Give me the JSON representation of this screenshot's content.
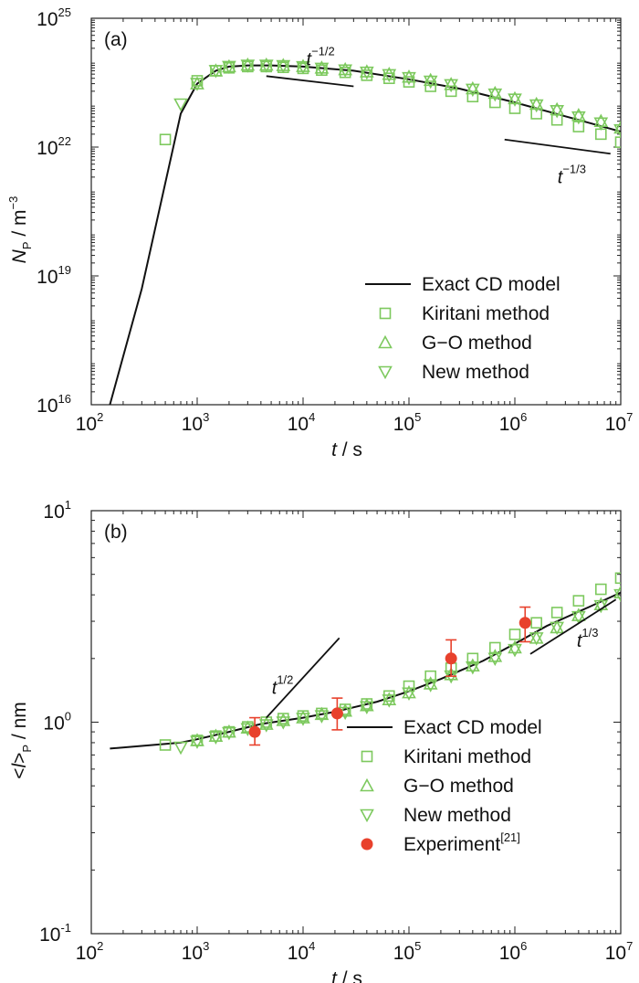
{
  "chart_data": [
    {
      "type": "line",
      "panel_label": "(a)",
      "xlabel": {
        "var": "t",
        "unit": " / s"
      },
      "ylabel": {
        "var": "N",
        "sub": "P",
        "unit": " / m",
        "unit_sup": "−3"
      },
      "x_scale": "log",
      "y_scale": "log",
      "xlim": [
        100,
        10000000
      ],
      "ylim": [
        1e+16,
        1e+25
      ],
      "x_ticks": [
        {
          "value": 100,
          "base": "10",
          "exp": "2"
        },
        {
          "value": 1000,
          "base": "10",
          "exp": "3"
        },
        {
          "value": 10000,
          "base": "10",
          "exp": "4"
        },
        {
          "value": 100000,
          "base": "10",
          "exp": "5"
        },
        {
          "value": 1000000,
          "base": "10",
          "exp": "6"
        },
        {
          "value": 10000000,
          "base": "10",
          "exp": "7"
        }
      ],
      "y_ticks": [
        {
          "value": 1e+16,
          "base": "10",
          "exp": "16"
        },
        {
          "value": 1e+19,
          "base": "10",
          "exp": "19"
        },
        {
          "value": 1e+22,
          "base": "10",
          "exp": "22"
        },
        {
          "value": 1e+25,
          "base": "10",
          "exp": "25"
        }
      ],
      "legend": {
        "position": "lower-right",
        "entries": [
          {
            "label": "Exact CD model",
            "symbol": "line"
          },
          {
            "label": "Kiritani method",
            "symbol": "square"
          },
          {
            "label": "G−O method",
            "symbol": "triangle-up"
          },
          {
            "label": "New method",
            "symbol": "triangle-down"
          }
        ]
      },
      "slope_annotations": [
        {
          "base": "t",
          "exp": "−1/2",
          "x": [
            4500,
            30000
          ],
          "y": [
            4.5e+23,
            2.6e+23
          ]
        },
        {
          "base": "t",
          "exp": "−1/3",
          "x": [
            800000,
            8000000
          ],
          "y": [
            1.5e+22,
            7e+21
          ]
        }
      ],
      "series": [
        {
          "name": "Exact CD model",
          "marker": "line",
          "x": [
            150,
            300,
            700,
            1000,
            1500,
            2000,
            3000,
            5000,
            10000,
            30000,
            100000,
            300000,
            1000000,
            3000000,
            10000000
          ],
          "y": [
            1e+16,
            5e+18,
            6e+22,
            3e+23,
            6e+23,
            7.5e+23,
            8e+23,
            8e+23,
            7.5e+23,
            6e+23,
            3.8e+23,
            2.3e+23,
            1.1e+23,
            5.2e+22,
            2.3e+22
          ]
        },
        {
          "name": "Kiritani method",
          "marker": "square",
          "x": [
            500,
            1000,
            1500,
            2000,
            3000,
            4500,
            6500,
            10000,
            15000,
            25000,
            40000,
            65000,
            100000,
            160000,
            250000,
            400000,
            650000,
            1000000,
            1600000,
            2500000,
            4000000,
            6500000,
            10000000
          ],
          "y": [
            1.5e+22,
            3.5e+23,
            6e+23,
            7e+23,
            7.5e+23,
            7.5e+23,
            7.2e+23,
            6.8e+23,
            6.2e+23,
            5.5e+23,
            4.7e+23,
            4e+23,
            3.3e+23,
            2.6e+23,
            2e+23,
            1.5e+23,
            1.1e+23,
            8e+22,
            6e+22,
            4.3e+22,
            3e+22,
            2e+22,
            1.3e+22
          ]
        },
        {
          "name": "G−O method",
          "marker": "triangle-up",
          "x": [
            1000,
            1500,
            2000,
            3000,
            4500,
            6500,
            10000,
            15000,
            25000,
            40000,
            65000,
            100000,
            160000,
            250000,
            400000,
            650000,
            1000000,
            1600000,
            2500000,
            4000000,
            6500000,
            10000000
          ],
          "y": [
            3e+23,
            6e+23,
            7.5e+23,
            8.2e+23,
            8.2e+23,
            8e+23,
            7.6e+23,
            7e+23,
            6.4e+23,
            5.7e+23,
            5e+23,
            4.3e+23,
            3.6e+23,
            2.9e+23,
            2.3e+23,
            1.8e+23,
            1.35e+23,
            1e+23,
            7.5e+22,
            5.5e+22,
            4e+22,
            2.8e+22
          ]
        },
        {
          "name": "New method",
          "marker": "triangle-down",
          "x": [
            700,
            1000,
            1500,
            2000,
            3000,
            4500,
            6500,
            10000,
            15000,
            25000,
            40000,
            65000,
            100000,
            160000,
            250000,
            400000,
            650000,
            1000000,
            1600000,
            2500000,
            4000000,
            6500000,
            10000000
          ],
          "y": [
            1e+23,
            3e+23,
            6e+23,
            7.5e+23,
            8e+23,
            8e+23,
            7.8e+23,
            7.4e+23,
            6.8e+23,
            6.2e+23,
            5.5e+23,
            4.8e+23,
            4.1e+23,
            3.4e+23,
            2.8e+23,
            2.2e+23,
            1.7e+23,
            1.3e+23,
            9.5e+22,
            7e+22,
            5e+22,
            3.6e+22,
            2.5e+22
          ]
        }
      ]
    },
    {
      "type": "line",
      "panel_label": "(b)",
      "xlabel": {
        "var": "t",
        "unit": " / s"
      },
      "ylabel": {
        "pre": "<",
        "var": "l",
        "post": ">",
        "sub": "P",
        "unit": " / nm"
      },
      "x_scale": "log",
      "y_scale": "log",
      "xlim": [
        100,
        10000000
      ],
      "ylim": [
        0.1,
        10
      ],
      "x_ticks": [
        {
          "value": 100,
          "base": "10",
          "exp": "2"
        },
        {
          "value": 1000,
          "base": "10",
          "exp": "3"
        },
        {
          "value": 10000,
          "base": "10",
          "exp": "4"
        },
        {
          "value": 100000,
          "base": "10",
          "exp": "5"
        },
        {
          "value": 1000000,
          "base": "10",
          "exp": "6"
        },
        {
          "value": 10000000,
          "base": "10",
          "exp": "7"
        }
      ],
      "y_ticks": [
        {
          "value": 0.1,
          "base": "10",
          "exp": "-1"
        },
        {
          "value": 1,
          "base": "10",
          "exp": "0"
        },
        {
          "value": 10,
          "base": "10",
          "exp": "1"
        }
      ],
      "legend": {
        "position": "lower-right",
        "entries": [
          {
            "label": "Exact CD model",
            "symbol": "line"
          },
          {
            "label": "Kiritani method",
            "symbol": "square"
          },
          {
            "label": "G−O method",
            "symbol": "triangle-up"
          },
          {
            "label": "New method",
            "symbol": "triangle-down"
          },
          {
            "label": "Experiment",
            "sup": "[21]",
            "symbol": "filled-circle"
          }
        ]
      },
      "slope_annotations": [
        {
          "base": "t",
          "exp": "1/2",
          "x": [
            4500,
            22000
          ],
          "y": [
            1.05,
            2.5
          ]
        },
        {
          "base": "t",
          "exp": "1/3",
          "x": [
            1400000,
            9000000
          ],
          "y": [
            2.1,
            3.8
          ]
        }
      ],
      "series": [
        {
          "name": "Exact CD model",
          "marker": "line",
          "x": [
            150,
            700,
            1000,
            2000,
            4000,
            10000,
            20000,
            50000,
            100000,
            200000,
            500000,
            1000000,
            2000000,
            5000000,
            10000000
          ],
          "y": [
            0.75,
            0.8,
            0.83,
            0.9,
            0.98,
            1.05,
            1.12,
            1.25,
            1.4,
            1.6,
            1.95,
            2.35,
            2.85,
            3.5,
            4.1
          ]
        },
        {
          "name": "Kiritani method",
          "marker": "square",
          "x": [
            500,
            1000,
            1500,
            2000,
            3000,
            4500,
            6500,
            10000,
            15000,
            25000,
            40000,
            65000,
            100000,
            160000,
            250000,
            400000,
            650000,
            1000000,
            1600000,
            2500000,
            4000000,
            6500000,
            10000000
          ],
          "y": [
            0.78,
            0.82,
            0.86,
            0.9,
            0.95,
            1.0,
            1.04,
            1.07,
            1.1,
            1.15,
            1.22,
            1.33,
            1.48,
            1.65,
            1.8,
            2.0,
            2.25,
            2.6,
            2.95,
            3.3,
            3.75,
            4.25,
            4.8
          ]
        },
        {
          "name": "G−O method",
          "marker": "triangle-up",
          "x": [
            1000,
            1500,
            2000,
            3000,
            4500,
            6500,
            10000,
            15000,
            25000,
            40000,
            65000,
            100000,
            160000,
            250000,
            400000,
            650000,
            1000000,
            1600000,
            2500000,
            4000000,
            6500000,
            10000000
          ],
          "y": [
            0.82,
            0.86,
            0.9,
            0.94,
            0.98,
            1.02,
            1.05,
            1.09,
            1.13,
            1.2,
            1.28,
            1.38,
            1.52,
            1.68,
            1.85,
            2.05,
            2.25,
            2.5,
            2.8,
            3.2,
            3.6,
            4.1
          ]
        },
        {
          "name": "New method",
          "marker": "triangle-down",
          "x": [
            700,
            1000,
            1500,
            2000,
            3000,
            4500,
            6500,
            10000,
            15000,
            25000,
            40000,
            65000,
            100000,
            160000,
            250000,
            400000,
            650000,
            1000000,
            1600000,
            2500000,
            4000000,
            6500000,
            10000000
          ],
          "y": [
            0.76,
            0.81,
            0.85,
            0.89,
            0.93,
            0.97,
            1.0,
            1.04,
            1.07,
            1.11,
            1.18,
            1.27,
            1.37,
            1.5,
            1.65,
            1.82,
            2.0,
            2.2,
            2.5,
            2.8,
            3.15,
            3.55,
            4.0
          ]
        },
        {
          "name": "Experiment",
          "marker": "filled-circle",
          "x": [
            3500,
            21000,
            250000,
            1250000
          ],
          "y": [
            0.9,
            1.1,
            2.0,
            2.95
          ],
          "err_low": [
            0.78,
            0.92,
            1.65,
            2.4
          ],
          "err_high": [
            1.05,
            1.3,
            2.45,
            3.5
          ]
        }
      ]
    }
  ],
  "colors": {
    "model_line": "#111111",
    "method_markers": "#7dc95e",
    "experiment": "#e8412c",
    "axes": "#222222"
  }
}
